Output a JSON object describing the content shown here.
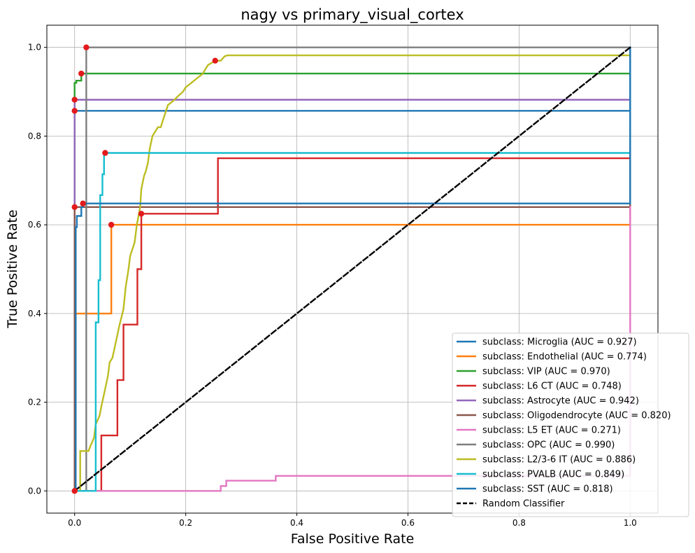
{
  "chart_data": {
    "type": "line",
    "title": "nagy vs primary_visual_cortex",
    "xlabel": "False Positive Rate",
    "ylabel": "True Positive Rate",
    "xlim": [
      -0.05,
      1.05
    ],
    "ylim": [
      -0.05,
      1.05
    ],
    "xticks": [
      "0.0",
      "0.2",
      "0.4",
      "0.6",
      "0.8",
      "1.0"
    ],
    "yticks": [
      "0.0",
      "0.2",
      "0.4",
      "0.6",
      "0.8",
      "1.0"
    ],
    "xtick_values": [
      0,
      0.2,
      0.4,
      0.6,
      0.8,
      1.0
    ],
    "ytick_values": [
      0,
      0.2,
      0.4,
      0.6,
      0.8,
      1.0
    ],
    "grid": true,
    "legend_position": "lower-right",
    "marker_color": "#e31a1c",
    "series": [
      {
        "name": "subclass: Microglia (AUC = 0.927)",
        "color": "#1f77b4",
        "x": [
          0,
          0,
          0.014,
          1,
          1
        ],
        "y": [
          0,
          0.857,
          0.857,
          0.857,
          1
        ],
        "marker": [
          0,
          0.857
        ]
      },
      {
        "name": "subclass: Endothelial (AUC = 0.774)",
        "color": "#ff7f0e",
        "x": [
          0,
          0,
          0.066,
          0.066,
          1,
          1
        ],
        "y": [
          0,
          0.4,
          0.4,
          0.6,
          0.6,
          1
        ],
        "marker": [
          0.066,
          0.6
        ]
      },
      {
        "name": "subclass: VIP (AUC = 0.970)",
        "color": "#2ca02c",
        "x": [
          0,
          0,
          0.003,
          0.003,
          0.012,
          0.012,
          1,
          1
        ],
        "y": [
          0,
          0.92,
          0.92,
          0.925,
          0.925,
          0.941,
          0.941,
          1
        ],
        "marker": [
          0.012,
          0.941
        ]
      },
      {
        "name": "subclass: L6 CT (AUC = 0.748)",
        "color": "#d62728",
        "x": [
          0,
          0.048,
          0.048,
          0.077,
          0.077,
          0.088,
          0.088,
          0.113,
          0.113,
          0.12,
          0.12,
          0.258,
          0.258,
          1,
          1
        ],
        "y": [
          0,
          0,
          0.125,
          0.125,
          0.25,
          0.25,
          0.375,
          0.375,
          0.5,
          0.5,
          0.625,
          0.625,
          0.75,
          0.75,
          1
        ],
        "marker": [
          0.12,
          0.625
        ]
      },
      {
        "name": "subclass: Astrocyte (AUC = 0.942)",
        "color": "#9467bd",
        "x": [
          0,
          0,
          1,
          1
        ],
        "y": [
          0,
          0.882,
          0.882,
          1
        ],
        "marker": [
          0,
          0.882
        ]
      },
      {
        "name": "subclass: Oligodendrocyte (AUC = 0.820)",
        "color": "#8c564b",
        "x": [
          0,
          0,
          1,
          1
        ],
        "y": [
          0,
          0.64,
          0.64,
          1
        ],
        "marker": [
          0,
          0.64
        ]
      },
      {
        "name": "subclass: L5 ET (AUC = 0.271)",
        "color": "#e377c2",
        "x": [
          0,
          0.263,
          0.263,
          0.273,
          0.273,
          0.362,
          0.362,
          1,
          1
        ],
        "y": [
          0,
          0,
          0.011,
          0.011,
          0.023,
          0.023,
          0.034,
          0.034,
          0.64
        ],
        "marker": null
      },
      {
        "name": "subclass: OPC (AUC = 0.990)",
        "color": "#7f7f7f",
        "x": [
          0,
          0.021,
          0.021,
          1
        ],
        "y": [
          0,
          0,
          1,
          1
        ],
        "marker": [
          0.021,
          1
        ]
      },
      {
        "name": "subclass: L2/3-6 IT (AUC = 0.886)",
        "color": "#bcbd22",
        "x": [
          0,
          0.01,
          0.01,
          0.025,
          0.028,
          0.035,
          0.038,
          0.045,
          0.048,
          0.055,
          0.06,
          0.063,
          0.068,
          0.075,
          0.08,
          0.088,
          0.092,
          0.097,
          0.1,
          0.108,
          0.112,
          0.118,
          0.12,
          0.125,
          0.128,
          0.132,
          0.135,
          0.14,
          0.145,
          0.15,
          0.155,
          0.16,
          0.168,
          0.178,
          0.186,
          0.195,
          0.2,
          0.21,
          0.22,
          0.23,
          0.24,
          0.253,
          0.263,
          0.27,
          0.275,
          1,
          1
        ],
        "y": [
          0,
          0,
          0.09,
          0.09,
          0.1,
          0.12,
          0.15,
          0.17,
          0.19,
          0.23,
          0.26,
          0.29,
          0.3,
          0.34,
          0.37,
          0.41,
          0.46,
          0.5,
          0.53,
          0.56,
          0.6,
          0.64,
          0.68,
          0.71,
          0.72,
          0.74,
          0.77,
          0.8,
          0.81,
          0.82,
          0.82,
          0.84,
          0.87,
          0.88,
          0.89,
          0.9,
          0.91,
          0.92,
          0.93,
          0.94,
          0.96,
          0.97,
          0.97,
          0.98,
          0.982,
          0.982,
          1
        ],
        "marker": [
          0.253,
          0.97
        ]
      },
      {
        "name": "subclass: PVALB (AUC = 0.849)",
        "color": "#17becf",
        "x": [
          0,
          0,
          0.038,
          0.038,
          0.043,
          0.043,
          0.046,
          0.046,
          0.05,
          0.05,
          0.053,
          0.053,
          1,
          1
        ],
        "y": [
          0,
          0,
          0,
          0.38,
          0.38,
          0.475,
          0.475,
          0.667,
          0.667,
          0.714,
          0.714,
          0.762,
          0.762,
          1
        ],
        "marker": [
          0.055,
          0.762
        ]
      },
      {
        "name": "subclass: SST (AUC = 0.818)",
        "color": "#1f77b4",
        "x": [
          0,
          0.002,
          0.002,
          0.004,
          0.004,
          0.012,
          0.012,
          0.015,
          0.015,
          1,
          1
        ],
        "y": [
          0,
          0,
          0.595,
          0.595,
          0.62,
          0.62,
          0.64,
          0.64,
          0.648,
          0.648,
          1
        ],
        "marker": [
          0.015,
          0.648
        ]
      },
      {
        "name": "Random Classifier",
        "color": "#000000",
        "dashed": true,
        "x": [
          0,
          1
        ],
        "y": [
          0,
          1
        ],
        "marker": null
      }
    ],
    "start_marker": [
      0,
      0
    ]
  }
}
